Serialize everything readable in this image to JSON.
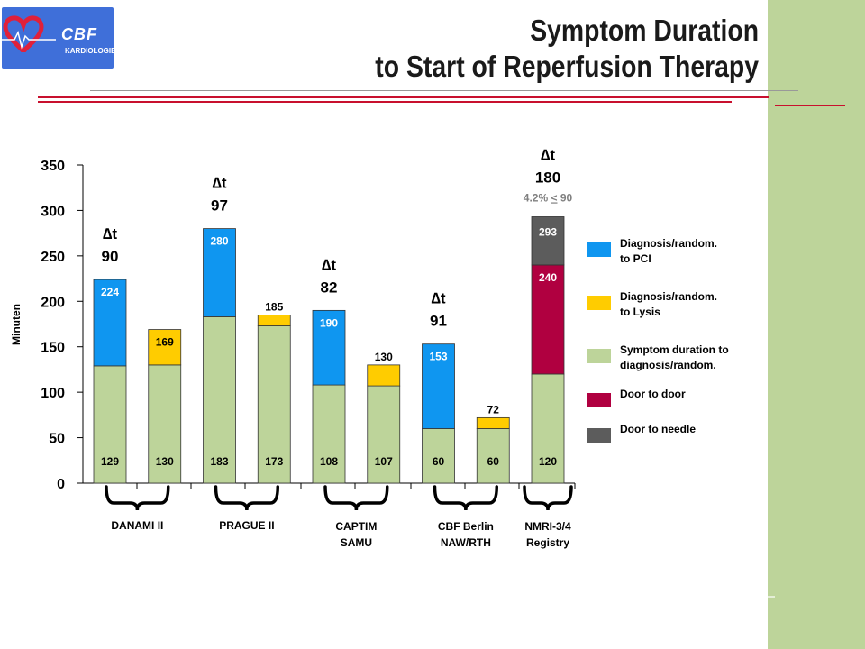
{
  "slide": {
    "title_line1": "Symptom Duration",
    "title_line2": "to Start of Reperfusion Therapy",
    "logo_text": "CBF",
    "logo_sub": "KARDIOLOGIE"
  },
  "colors": {
    "symptom": "#bdd49a",
    "pci": "#0f96f0",
    "lysis": "#ffcc00",
    "door_to_door": "#b00040",
    "door_to_needle": "#5c5c5c",
    "band": "#bdd49a",
    "rule_red": "#c8102e",
    "logo_bg": "#3f6fd9"
  },
  "chart_data": {
    "type": "bar",
    "stacked": true,
    "ylabel": "Minuten",
    "ylim": [
      0,
      350
    ],
    "yticks": [
      0,
      50,
      100,
      150,
      200,
      250,
      300,
      350
    ],
    "grid": false,
    "legend_position": "right",
    "legend": [
      {
        "key": "pci",
        "label": "Diagnosis/random.\nto  PCI"
      },
      {
        "key": "lysis",
        "label": "Diagnosis/random.\nto Lysis"
      },
      {
        "key": "symptom",
        "label": "Symptom duration to\ndiagnosis/random."
      },
      {
        "key": "door_to_door",
        "label": "Door to door"
      },
      {
        "key": "door_to_needle",
        "label": "Door to needle"
      }
    ],
    "bars": [
      {
        "base": 129,
        "base_label": "129",
        "top": 224,
        "top_label": "224",
        "top_key": "pci"
      },
      {
        "base": 130,
        "base_label": "130",
        "top": 169,
        "top_label": "169",
        "top_key": "lysis"
      },
      {
        "base": 183,
        "base_label": "183",
        "top": 280,
        "top_label": "280",
        "top_key": "pci"
      },
      {
        "base": 173,
        "base_label": "173",
        "top": 185,
        "top_label": "185",
        "top_key": "lysis"
      },
      {
        "base": 108,
        "base_label": "108",
        "top": 190,
        "top_label": "190",
        "top_key": "pci"
      },
      {
        "base": 107,
        "base_label": "107",
        "top": 130,
        "top_label": "130",
        "top_key": "lysis"
      },
      {
        "base": 60,
        "base_label": "60",
        "top": 153,
        "top_label": "153",
        "top_key": "pci"
      },
      {
        "base": 60,
        "base_label": "60",
        "top": 72,
        "top_label": "72",
        "top_key": "lysis"
      },
      {
        "base": 120,
        "base_label": "120",
        "top": 240,
        "top_label": "240",
        "top_key": "door_to_door",
        "extra": 293,
        "extra_label": "293",
        "extra_key": "door_to_needle"
      }
    ],
    "groups": [
      {
        "label": "DANAMI II",
        "bars": [
          0,
          1
        ]
      },
      {
        "label": "PRAGUE II",
        "bars": [
          2,
          3
        ]
      },
      {
        "label": "CAPTIM\nSAMU",
        "bars": [
          4,
          5
        ]
      },
      {
        "label": "CBF Berlin\nNAW/RTH",
        "bars": [
          6,
          7
        ]
      },
      {
        "label": "NMRI-3/4\nRegistry",
        "bars": [
          8
        ]
      }
    ],
    "annotations": [
      {
        "bar": 0,
        "symbol": "∆t",
        "value": "90"
      },
      {
        "bar": 2,
        "symbol": "∆t",
        "value": "97"
      },
      {
        "bar": 4,
        "symbol": "∆t",
        "value": "82"
      },
      {
        "bar": 6,
        "symbol": "∆t",
        "value": "91"
      },
      {
        "bar": 8,
        "symbol": "∆t",
        "value": "180",
        "note_prefix": "4.2% ",
        "note_underlined": "<",
        "note_suffix": " 90"
      }
    ]
  }
}
